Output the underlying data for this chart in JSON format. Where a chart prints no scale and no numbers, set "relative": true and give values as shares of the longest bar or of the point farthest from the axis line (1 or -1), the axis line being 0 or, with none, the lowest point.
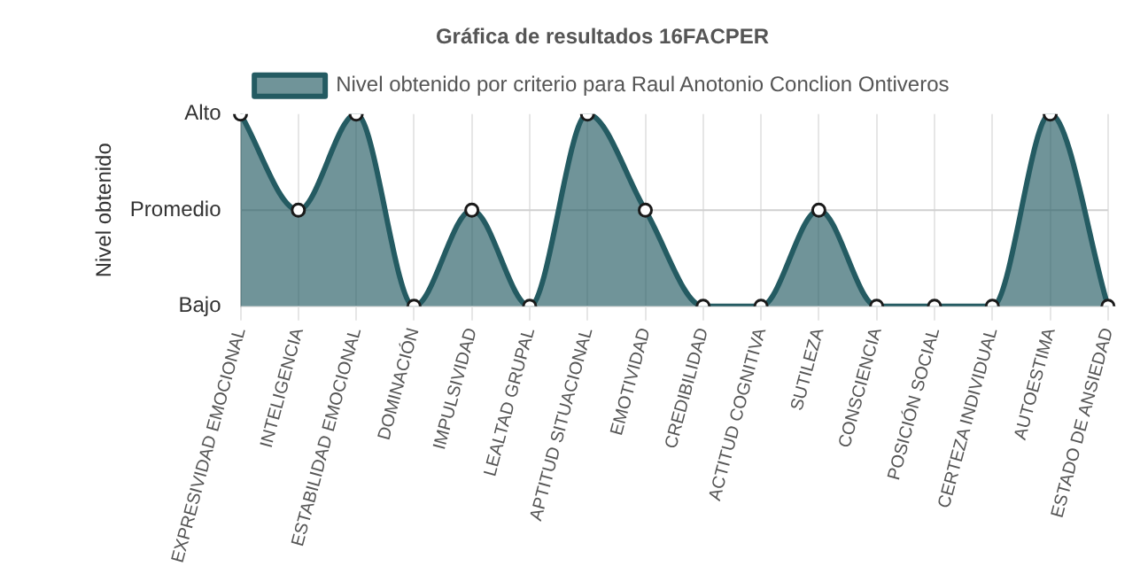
{
  "chart_data": {
    "type": "area",
    "title": "Gráfica de resultados 16FACPER",
    "ylabel": "Nivel obtenido",
    "categories": [
      "EXPRESIVIDAD EMOCIONAL",
      "INTELIGENCIA",
      "ESTABILIDAD EMOCIONAL",
      "DOMINACIÓN",
      "IMPULSIVIDAD",
      "LEALTAD GRUPAL",
      "APTITUD SITUACIONAL",
      "EMOTIVIDAD",
      "CREDIBILIDAD",
      "ACTITUD COGNITIVA",
      "SUTILEZA",
      "CONSCIENCIA",
      "POSICIÓN SOCIAL",
      "CERTEZA INDIVIDUAL",
      "AUTOESTIMA",
      "ESTADO DE ANSIEDAD"
    ],
    "series": [
      {
        "name": "Nivel obtenido por criterio para Raul Anotonio Conclion Ontiveros",
        "color": "#245b62",
        "values": [
          1,
          0.5,
          1,
          0,
          0.5,
          0,
          1,
          0.5,
          0,
          0,
          0.5,
          0,
          0,
          0,
          1,
          0
        ]
      }
    ],
    "relative": true,
    "y_categories": [
      "Alto",
      "Promedio",
      "Bajo"
    ],
    "grid": "x",
    "ref_lines": [
      {
        "axis": "y",
        "value": 0.5,
        "color": "#d0d0d0"
      }
    ],
    "legend": "top",
    "marker": "circle",
    "line_style": "solid"
  }
}
